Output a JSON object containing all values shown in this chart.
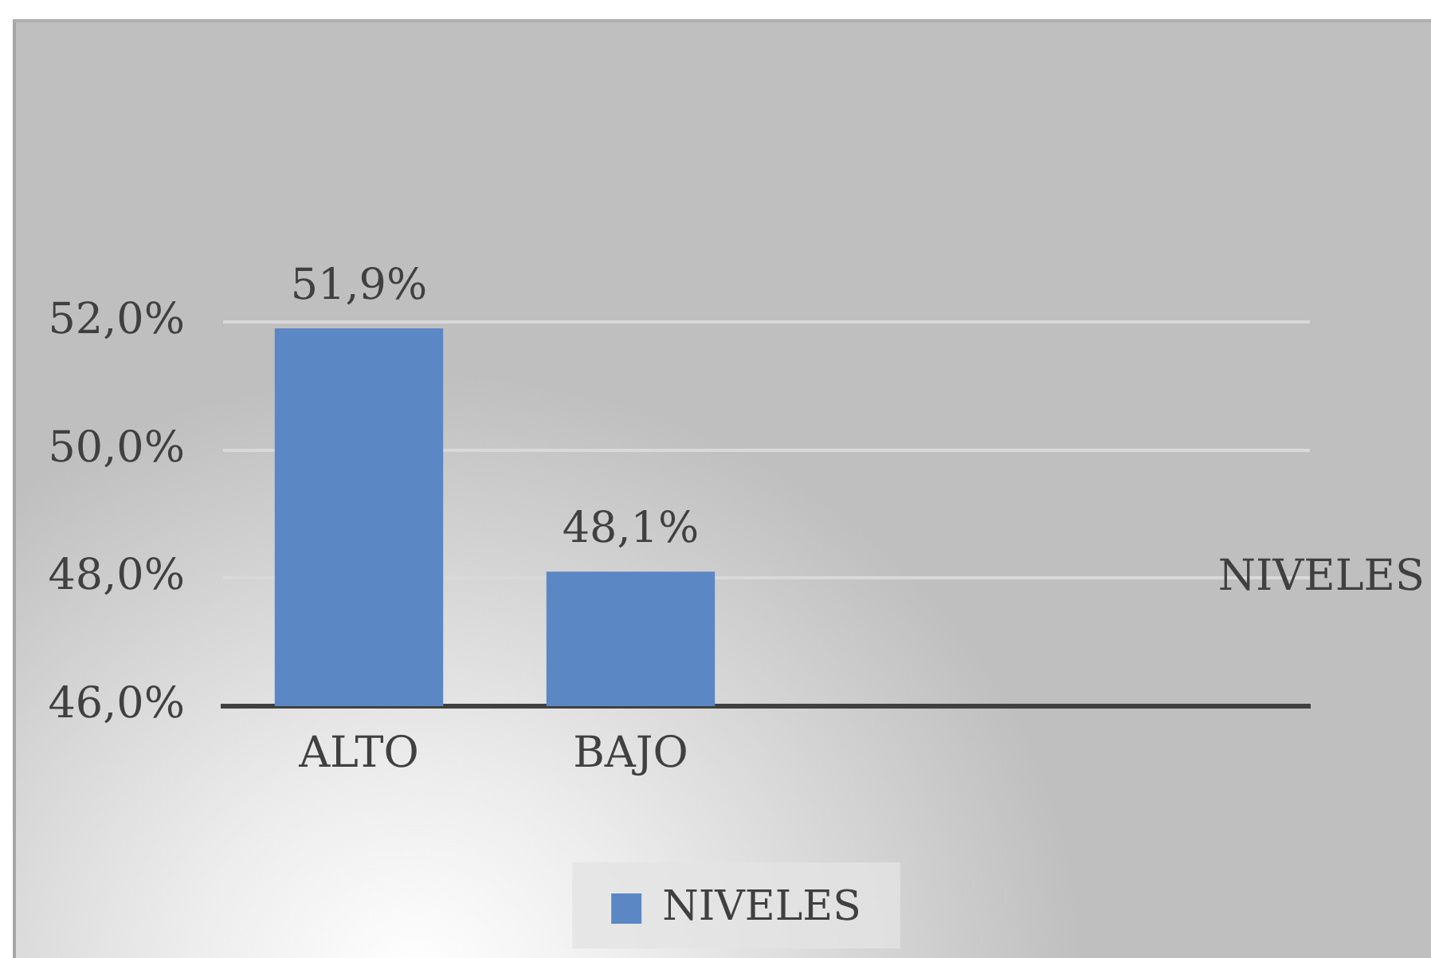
{
  "chart_data": {
    "type": "bar",
    "categories": [
      "ALTO",
      "BAJO",
      null,
      null
    ],
    "series": [
      {
        "name": "NIVELES",
        "color": "#5b87c4",
        "values": [
          51.9,
          48.1,
          null,
          null
        ],
        "value_labels": [
          "51,9%",
          "48,1%",
          null,
          null
        ]
      }
    ],
    "ylim": [
      46,
      52
    ],
    "yticks": [
      {
        "value": 46,
        "label": "46,0%"
      },
      {
        "value": 48,
        "label": "48,0%"
      },
      {
        "value": 50,
        "label": "50,0%"
      },
      {
        "value": 52,
        "label": "52,0%"
      }
    ],
    "grid": "y",
    "legend": "bottom",
    "annotations": [
      "NIVELES"
    ]
  }
}
